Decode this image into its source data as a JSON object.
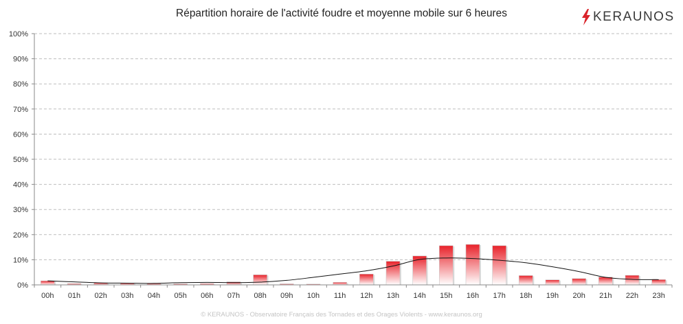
{
  "chart_data": {
    "type": "bar",
    "title": "Répartition horaire de l'activité foudre et moyenne mobile sur 6 heures",
    "xlabel": "",
    "ylabel": "",
    "ylim": [
      0,
      100
    ],
    "yticks": [
      "0%",
      "10%",
      "20%",
      "30%",
      "40%",
      "50%",
      "60%",
      "70%",
      "80%",
      "90%",
      "100%"
    ],
    "grid": true,
    "categories": [
      "00h",
      "01h",
      "02h",
      "03h",
      "04h",
      "05h",
      "06h",
      "07h",
      "08h",
      "09h",
      "10h",
      "11h",
      "12h",
      "13h",
      "14h",
      "15h",
      "16h",
      "17h",
      "18h",
      "19h",
      "20h",
      "21h",
      "22h",
      "23h"
    ],
    "series": [
      {
        "type": "bar",
        "values": [
          1.6,
          0.5,
          0.8,
          0.7,
          0.5,
          0.4,
          0.5,
          1.2,
          4.0,
          0.4,
          0.3,
          1.0,
          4.3,
          9.4,
          11.5,
          15.6,
          16.1,
          15.6,
          3.7,
          2.0,
          2.5,
          3.1,
          3.8,
          2.1
        ]
      },
      {
        "type": "line",
        "values": [
          1.6,
          1.2,
          0.8,
          0.7,
          0.6,
          0.9,
          1.0,
          0.9,
          1.1,
          1.8,
          3.0,
          4.3,
          5.6,
          7.5,
          10.1,
          10.7,
          10.5,
          9.8,
          8.8,
          7.2,
          5.3,
          3.0,
          2.2,
          2.1
        ]
      }
    ],
    "colors": {
      "bar_top": "#e8222a",
      "bar_bottom": "#ffffff",
      "bar_border": "#c8c8c8",
      "line": "#111111",
      "grid": "#bdbdbd"
    }
  },
  "logo": {
    "text": "KERAUNOS",
    "icon": "lightning-bolt-icon",
    "color": "#d9232a"
  },
  "footer": "© KERAUNOS - Observatoire Français des Tornades et des Orages Violents - www.keraunos.org"
}
